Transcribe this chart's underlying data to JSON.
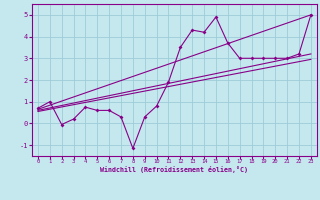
{
  "xlabel": "Windchill (Refroidissement éolien,°C)",
  "xlim": [
    -0.5,
    23.5
  ],
  "ylim": [
    -1.5,
    5.5
  ],
  "yticks": [
    -1,
    0,
    1,
    2,
    3,
    4,
    5
  ],
  "xticks": [
    0,
    1,
    2,
    3,
    4,
    5,
    6,
    7,
    8,
    9,
    10,
    11,
    12,
    13,
    14,
    15,
    16,
    17,
    18,
    19,
    20,
    21,
    22,
    23
  ],
  "bg_color": "#c5e8ef",
  "line_color": "#880088",
  "grid_color": "#9dccd8",
  "scatter_x": [
    0,
    1,
    2,
    3,
    4,
    5,
    6,
    7,
    8,
    9,
    10,
    11,
    12,
    13,
    14,
    15,
    16,
    17,
    18,
    19,
    20,
    21,
    22,
    23
  ],
  "scatter_y": [
    0.7,
    1.0,
    -0.05,
    0.2,
    0.75,
    0.6,
    0.6,
    0.3,
    -1.15,
    0.3,
    0.8,
    1.9,
    3.5,
    4.3,
    4.2,
    4.9,
    3.7,
    3.0,
    3.0,
    3.0,
    3.0,
    3.0,
    3.2,
    5.0
  ],
  "trend1_x": [
    0,
    23
  ],
  "trend1_y": [
    0.65,
    5.0
  ],
  "trend2_x": [
    0,
    23
  ],
  "trend2_y": [
    0.6,
    3.2
  ],
  "trend3_x": [
    0,
    23
  ],
  "trend3_y": [
    0.55,
    2.95
  ]
}
